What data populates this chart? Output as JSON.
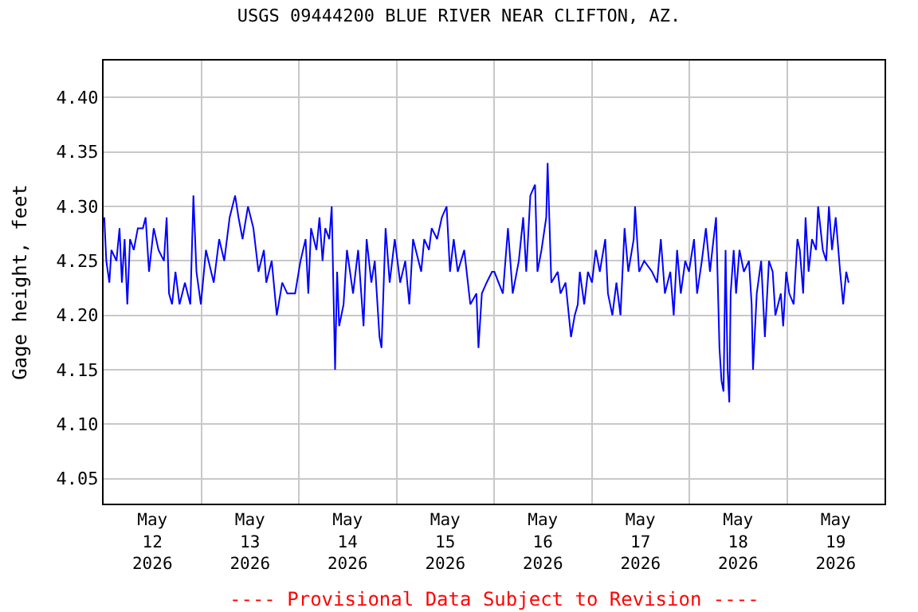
{
  "chart_data": {
    "type": "line",
    "title": "USGS 09444200 BLUE RIVER NEAR CLIFTON, AZ.",
    "ylabel": "Gage height, feet",
    "annotations": [
      "---- Provisional Data Subject to Revision ----"
    ],
    "xlim": [
      "2026-05-12",
      "2026-05-20"
    ],
    "xticks": [
      {
        "value": "2026-05-12T12:00",
        "label": "May\n12\n2026"
      },
      {
        "value": "2026-05-13T12:00",
        "label": "May\n13\n2026"
      },
      {
        "value": "2026-05-14T12:00",
        "label": "May\n14\n2026"
      },
      {
        "value": "2026-05-15T12:00",
        "label": "May\n15\n2026"
      },
      {
        "value": "2026-05-16T12:00",
        "label": "May\n16\n2026"
      },
      {
        "value": "2026-05-17T12:00",
        "label": "May\n17\n2026"
      },
      {
        "value": "2026-05-18T12:00",
        "label": "May\n18\n2026"
      },
      {
        "value": "2026-05-19T12:00",
        "label": "May\n19\n2026"
      },
      {
        "value": "2026-05-13",
        "label": null
      },
      {
        "value": "2026-05-14",
        "label": null
      },
      {
        "value": "2026-05-15",
        "label": null
      },
      {
        "value": "2026-05-16",
        "label": null
      },
      {
        "value": "2026-05-17",
        "label": null
      },
      {
        "value": "2026-05-18",
        "label": null
      },
      {
        "value": "2026-05-19",
        "label": null
      }
    ],
    "ylim": [
      4.027,
      4.434
    ],
    "yticks": [
      {
        "value": 4.05,
        "label": "4.05"
      },
      {
        "value": 4.1,
        "label": "4.10"
      },
      {
        "value": 4.15,
        "label": "4.15"
      },
      {
        "value": 4.2,
        "label": "4.20"
      },
      {
        "value": 4.25,
        "label": "4.25"
      },
      {
        "value": 4.3,
        "label": "4.30"
      },
      {
        "value": 4.35,
        "label": "4.35"
      },
      {
        "value": 4.4,
        "label": "4.40"
      }
    ],
    "grid": true,
    "marker": "none",
    "line_style": "solid",
    "series": [
      {
        "color": "#0000ff",
        "x": [
          "2026-05-12T00:10",
          "2026-05-12T00:40",
          "2026-05-12T01:25",
          "2026-05-12T01:55",
          "2026-05-12T03:10",
          "2026-05-12T03:55",
          "2026-05-12T04:30",
          "2026-05-12T05:10",
          "2026-05-12T05:50",
          "2026-05-12T06:30",
          "2026-05-12T07:25",
          "2026-05-12T08:25",
          "2026-05-12T09:40",
          "2026-05-12T10:20",
          "2026-05-12T11:10",
          "2026-05-12T12:20",
          "2026-05-12T13:30",
          "2026-05-12T14:50",
          "2026-05-12T15:30",
          "2026-05-12T16:05",
          "2026-05-12T16:50",
          "2026-05-12T17:40",
          "2026-05-12T18:40",
          "2026-05-12T20:00",
          "2026-05-12T21:20",
          "2026-05-12T22:05",
          "2026-05-12T22:50",
          "2026-05-12T23:55",
          "2026-05-13T01:10",
          "2026-05-13T03:05",
          "2026-05-13T04:25",
          "2026-05-13T05:40",
          "2026-05-13T07:00",
          "2026-05-13T08:20",
          "2026-05-13T09:10",
          "2026-05-13T10:10",
          "2026-05-13T11:30",
          "2026-05-13T12:50",
          "2026-05-13T14:05",
          "2026-05-13T15:25",
          "2026-05-13T16:00",
          "2026-05-13T17:20",
          "2026-05-13T18:35",
          "2026-05-13T19:55",
          "2026-05-13T21:10",
          "2026-05-13T23:05",
          "2026-05-14T00:25",
          "2026-05-14T01:40",
          "2026-05-14T02:20",
          "2026-05-14T03:00",
          "2026-05-14T04:20",
          "2026-05-14T05:05",
          "2026-05-14T05:50",
          "2026-05-14T06:30",
          "2026-05-14T07:30",
          "2026-05-14T08:05",
          "2026-05-14T08:55",
          "2026-05-14T09:25",
          "2026-05-14T09:55",
          "2026-05-14T11:00",
          "2026-05-14T11:50",
          "2026-05-14T13:20",
          "2026-05-14T14:35",
          "2026-05-14T15:55",
          "2026-05-14T16:40",
          "2026-05-14T17:50",
          "2026-05-14T18:40",
          "2026-05-14T19:50",
          "2026-05-14T20:20",
          "2026-05-14T21:20",
          "2026-05-14T22:20",
          "2026-05-14T23:35",
          "2026-05-15T00:55",
          "2026-05-15T02:10",
          "2026-05-15T03:10",
          "2026-05-15T04:05",
          "2026-05-15T06:05",
          "2026-05-15T06:50",
          "2026-05-15T08:00",
          "2026-05-15T08:40",
          "2026-05-15T10:00",
          "2026-05-15T11:10",
          "2026-05-15T12:20",
          "2026-05-15T13:10",
          "2026-05-15T14:05",
          "2026-05-15T15:05",
          "2026-05-15T16:40",
          "2026-05-15T18:10",
          "2026-05-15T19:40",
          "2026-05-15T20:10",
          "2026-05-15T21:00",
          "2026-05-15T22:10",
          "2026-05-15T23:30",
          "2026-05-16T00:05",
          "2026-05-16T02:10",
          "2026-05-16T03:25",
          "2026-05-16T04:35",
          "2026-05-16T06:05",
          "2026-05-16T07:10",
          "2026-05-16T07:55",
          "2026-05-16T08:55",
          "2026-05-16T10:05",
          "2026-05-16T10:40",
          "2026-05-16T11:40",
          "2026-05-16T12:50",
          "2026-05-16T13:10",
          "2026-05-16T14:05",
          "2026-05-16T15:40",
          "2026-05-16T16:20",
          "2026-05-16T17:35",
          "2026-05-16T18:55",
          "2026-05-16T19:50",
          "2026-05-16T20:35",
          "2026-05-16T21:05",
          "2026-05-16T22:10",
          "2026-05-16T23:05",
          "2026-05-17T00:05",
          "2026-05-17T01:00",
          "2026-05-17T02:00",
          "2026-05-17T03:20",
          "2026-05-17T04:00",
          "2026-05-17T05:05",
          "2026-05-17T06:05",
          "2026-05-17T07:05",
          "2026-05-17T08:05",
          "2026-05-17T09:00",
          "2026-05-17T10:20",
          "2026-05-17T10:40",
          "2026-05-17T11:40",
          "2026-05-17T12:55",
          "2026-05-17T14:50",
          "2026-05-17T16:05",
          "2026-05-17T17:00",
          "2026-05-17T18:00",
          "2026-05-17T19:20",
          "2026-05-17T20:10",
          "2026-05-17T21:00",
          "2026-05-17T21:55",
          "2026-05-17T23:00",
          "2026-05-17T23:55",
          "2026-05-18T01:10",
          "2026-05-18T01:55",
          "2026-05-18T03:05",
          "2026-05-18T04:05",
          "2026-05-18T05:05",
          "2026-05-18T05:40",
          "2026-05-18T06:35",
          "2026-05-18T07:25",
          "2026-05-18T07:55",
          "2026-05-18T08:25",
          "2026-05-18T08:55",
          "2026-05-18T09:25",
          "2026-05-18T09:50",
          "2026-05-18T10:10",
          "2026-05-18T10:55",
          "2026-05-18T11:30",
          "2026-05-18T12:20",
          "2026-05-18T13:25",
          "2026-05-18T14:40",
          "2026-05-18T15:20",
          "2026-05-18T15:40",
          "2026-05-18T16:35",
          "2026-05-18T17:40",
          "2026-05-18T18:35",
          "2026-05-18T19:35",
          "2026-05-18T20:30",
          "2026-05-18T21:10",
          "2026-05-18T22:30",
          "2026-05-18T23:05",
          "2026-05-18T23:50",
          "2026-05-19T00:35",
          "2026-05-19T01:40",
          "2026-05-19T02:35",
          "2026-05-19T03:10",
          "2026-05-19T04:00",
          "2026-05-19T04:35",
          "2026-05-19T05:20",
          "2026-05-19T06:10",
          "2026-05-19T07:10",
          "2026-05-19T07:40",
          "2026-05-19T08:50",
          "2026-05-19T09:40",
          "2026-05-19T10:20",
          "2026-05-19T11:05",
          "2026-05-19T12:00",
          "2026-05-19T13:05",
          "2026-05-19T13:50",
          "2026-05-19T14:35",
          "2026-05-19T15:10"
        ],
        "values": [
          4.29,
          4.25,
          4.23,
          4.26,
          4.25,
          4.28,
          4.23,
          4.27,
          4.21,
          4.27,
          4.26,
          4.28,
          4.28,
          4.29,
          4.24,
          4.28,
          4.26,
          4.25,
          4.29,
          4.22,
          4.21,
          4.24,
          4.21,
          4.23,
          4.21,
          4.31,
          4.24,
          4.21,
          4.26,
          4.23,
          4.27,
          4.25,
          4.29,
          4.31,
          4.29,
          4.27,
          4.3,
          4.28,
          4.24,
          4.26,
          4.23,
          4.25,
          4.2,
          4.23,
          4.22,
          4.22,
          4.25,
          4.27,
          4.22,
          4.28,
          4.26,
          4.29,
          4.25,
          4.28,
          4.27,
          4.3,
          4.15,
          4.24,
          4.19,
          4.21,
          4.26,
          4.22,
          4.26,
          4.19,
          4.27,
          4.23,
          4.25,
          4.18,
          4.17,
          4.28,
          4.23,
          4.27,
          4.23,
          4.25,
          4.21,
          4.27,
          4.24,
          4.27,
          4.26,
          4.28,
          4.27,
          4.29,
          4.3,
          4.24,
          4.27,
          4.24,
          4.26,
          4.21,
          4.22,
          4.17,
          4.22,
          4.23,
          4.24,
          4.24,
          4.22,
          4.28,
          4.22,
          4.25,
          4.29,
          4.24,
          4.31,
          4.32,
          4.24,
          4.26,
          4.29,
          4.34,
          4.23,
          4.24,
          4.22,
          4.23,
          4.18,
          4.2,
          4.21,
          4.24,
          4.21,
          4.24,
          4.23,
          4.26,
          4.24,
          4.27,
          4.22,
          4.2,
          4.23,
          4.2,
          4.28,
          4.24,
          4.27,
          4.3,
          4.24,
          4.25,
          4.24,
          4.23,
          4.27,
          4.22,
          4.24,
          4.2,
          4.26,
          4.22,
          4.25,
          4.24,
          4.27,
          4.22,
          4.25,
          4.28,
          4.24,
          4.26,
          4.29,
          4.17,
          4.14,
          4.13,
          4.26,
          4.15,
          4.12,
          4.22,
          4.26,
          4.22,
          4.26,
          4.24,
          4.25,
          4.21,
          4.15,
          4.22,
          4.25,
          4.18,
          4.25,
          4.24,
          4.2,
          4.22,
          4.19,
          4.24,
          4.22,
          4.21,
          4.27,
          4.26,
          4.22,
          4.29,
          4.24,
          4.27,
          4.26,
          4.3,
          4.26,
          4.25,
          4.3,
          4.26,
          4.29,
          4.24,
          4.21,
          4.24,
          4.23
        ]
      }
    ]
  }
}
